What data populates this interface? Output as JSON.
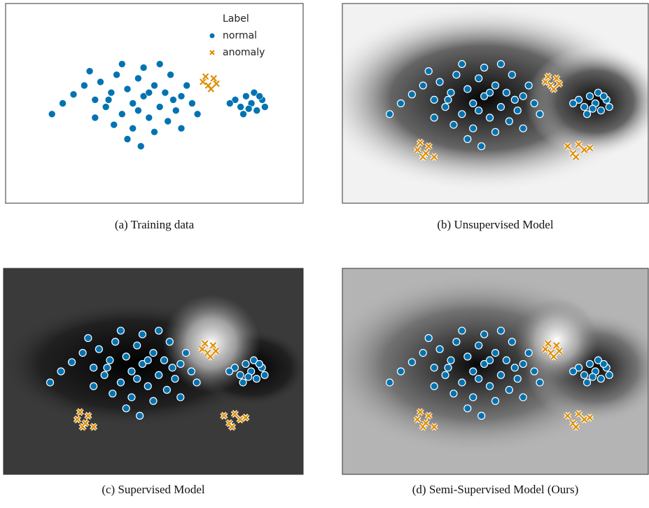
{
  "chart_data": [
    {
      "type": "scatter",
      "caption": "(a) Training data",
      "xlim": [
        0,
        100
      ],
      "ylim": [
        0,
        100
      ],
      "legend": "upper right",
      "legend_title": "Label",
      "series": [
        {
          "name": "normal",
          "color": "#0173b2",
          "marker": "o",
          "x": [
            20,
            24,
            28,
            30,
            32,
            34,
            36,
            38,
            40,
            42,
            44,
            46,
            48,
            50,
            52,
            54,
            56,
            58,
            60,
            62,
            64,
            35,
            42,
            50,
            46,
            38,
            55,
            28,
            26,
            44,
            40,
            52,
            33,
            48,
            57,
            16,
            12,
            66,
            60,
            45,
            80,
            82,
            84,
            86,
            88,
            90,
            83,
            87,
            91,
            78,
            85,
            89
          ],
          "values": [
            55,
            60,
            52,
            62,
            48,
            56,
            66,
            44,
            58,
            50,
            64,
            54,
            42,
            60,
            48,
            56,
            66,
            46,
            54,
            60,
            50,
            38,
            36,
            34,
            70,
            72,
            40,
            42,
            68,
            46,
            30,
            72,
            52,
            56,
            52,
            50,
            44,
            44,
            36,
            26,
            52,
            48,
            54,
            50,
            46,
            52,
            44,
            56,
            48,
            50,
            47,
            54
          ]
        },
        {
          "name": "anomaly",
          "color": "#de8f05",
          "marker": "x",
          "x": [
            68,
            70,
            72,
            71,
            73,
            69
          ],
          "values": [
            62,
            60,
            64,
            58,
            61,
            65
          ]
        }
      ]
    },
    {
      "type": "scatter",
      "caption": "(b) Unsupervised Model",
      "xlim": [
        0,
        100
      ],
      "ylim": [
        0,
        100
      ],
      "series": [
        {
          "color": "#0173b2",
          "marker": "o",
          "x": [
            20,
            24,
            28,
            30,
            32,
            34,
            36,
            38,
            40,
            42,
            44,
            46,
            48,
            50,
            52,
            54,
            56,
            58,
            60,
            62,
            64,
            35,
            42,
            50,
            46,
            38,
            55,
            28,
            26,
            44,
            40,
            52,
            33,
            48,
            57,
            16,
            12,
            66,
            60,
            45,
            80,
            82,
            84,
            86,
            88,
            90,
            83,
            87,
            91,
            78,
            85,
            89
          ],
          "values": [
            55,
            60,
            52,
            62,
            48,
            56,
            66,
            44,
            58,
            50,
            64,
            54,
            42,
            60,
            48,
            56,
            66,
            46,
            54,
            60,
            50,
            38,
            36,
            34,
            70,
            72,
            40,
            42,
            68,
            46,
            30,
            72,
            52,
            56,
            52,
            50,
            44,
            44,
            36,
            26,
            52,
            48,
            54,
            50,
            46,
            52,
            44,
            56,
            48,
            50,
            47,
            54
          ]
        },
        {
          "color": "#de8f05",
          "marker": "x",
          "x": [
            68,
            70,
            72,
            71,
            73,
            69,
            22,
            24,
            26,
            25,
            28,
            23,
            76,
            78,
            80,
            82,
            79,
            84
          ],
          "values": [
            62,
            60,
            64,
            58,
            61,
            65,
            24,
            20,
            26,
            22,
            20,
            28,
            26,
            22,
            27,
            24,
            20,
            25
          ]
        }
      ]
    },
    {
      "type": "scatter",
      "caption": "(c) Supervised Model",
      "xlim": [
        0,
        100
      ],
      "ylim": [
        0,
        100
      ],
      "series": [
        {
          "color": "#0173b2",
          "marker": "o",
          "x": [
            20,
            24,
            28,
            30,
            32,
            34,
            36,
            38,
            40,
            42,
            44,
            46,
            48,
            50,
            52,
            54,
            56,
            58,
            60,
            62,
            64,
            35,
            42,
            50,
            46,
            38,
            55,
            28,
            26,
            44,
            40,
            52,
            33,
            48,
            57,
            16,
            12,
            66,
            60,
            45,
            80,
            82,
            84,
            86,
            88,
            90,
            83,
            87,
            91,
            78,
            85,
            89
          ],
          "values": [
            55,
            60,
            52,
            62,
            48,
            56,
            66,
            44,
            58,
            50,
            64,
            54,
            42,
            60,
            48,
            56,
            66,
            46,
            54,
            60,
            50,
            38,
            36,
            34,
            70,
            72,
            40,
            42,
            68,
            46,
            30,
            72,
            52,
            56,
            52,
            50,
            44,
            44,
            36,
            26,
            52,
            48,
            54,
            50,
            46,
            52,
            44,
            56,
            48,
            50,
            47,
            54
          ]
        },
        {
          "color": "#de8f05",
          "marker": "x",
          "x": [
            68,
            70,
            72,
            71,
            73,
            69,
            22,
            24,
            26,
            25,
            28,
            23,
            76,
            78,
            80,
            82,
            79,
            84
          ],
          "values": [
            62,
            60,
            64,
            58,
            61,
            65,
            24,
            20,
            26,
            22,
            20,
            28,
            26,
            22,
            27,
            24,
            20,
            25
          ]
        }
      ]
    },
    {
      "type": "scatter",
      "caption": "(d) Semi-Supervised Model (Ours)",
      "xlim": [
        0,
        100
      ],
      "ylim": [
        0,
        100
      ],
      "series": [
        {
          "color": "#0173b2",
          "marker": "o",
          "x": [
            20,
            24,
            28,
            30,
            32,
            34,
            36,
            38,
            40,
            42,
            44,
            46,
            48,
            50,
            52,
            54,
            56,
            58,
            60,
            62,
            64,
            35,
            42,
            50,
            46,
            38,
            55,
            28,
            26,
            44,
            40,
            52,
            33,
            48,
            57,
            16,
            12,
            66,
            60,
            45,
            80,
            82,
            84,
            86,
            88,
            90,
            83,
            87,
            91,
            78,
            85,
            89
          ],
          "values": [
            55,
            60,
            52,
            62,
            48,
            56,
            66,
            44,
            58,
            50,
            64,
            54,
            42,
            60,
            48,
            56,
            66,
            46,
            54,
            60,
            50,
            38,
            36,
            34,
            70,
            72,
            40,
            42,
            68,
            46,
            30,
            72,
            52,
            56,
            52,
            50,
            44,
            44,
            36,
            26,
            52,
            48,
            54,
            50,
            46,
            52,
            44,
            56,
            48,
            50,
            47,
            54
          ]
        },
        {
          "color": "#de8f05",
          "marker": "x",
          "x": [
            68,
            70,
            72,
            71,
            73,
            69,
            22,
            24,
            26,
            25,
            28,
            23,
            76,
            78,
            80,
            82,
            79,
            84
          ],
          "values": [
            62,
            60,
            64,
            58,
            61,
            65,
            24,
            20,
            26,
            22,
            20,
            28,
            26,
            22,
            27,
            24,
            20,
            25
          ]
        }
      ]
    }
  ]
}
